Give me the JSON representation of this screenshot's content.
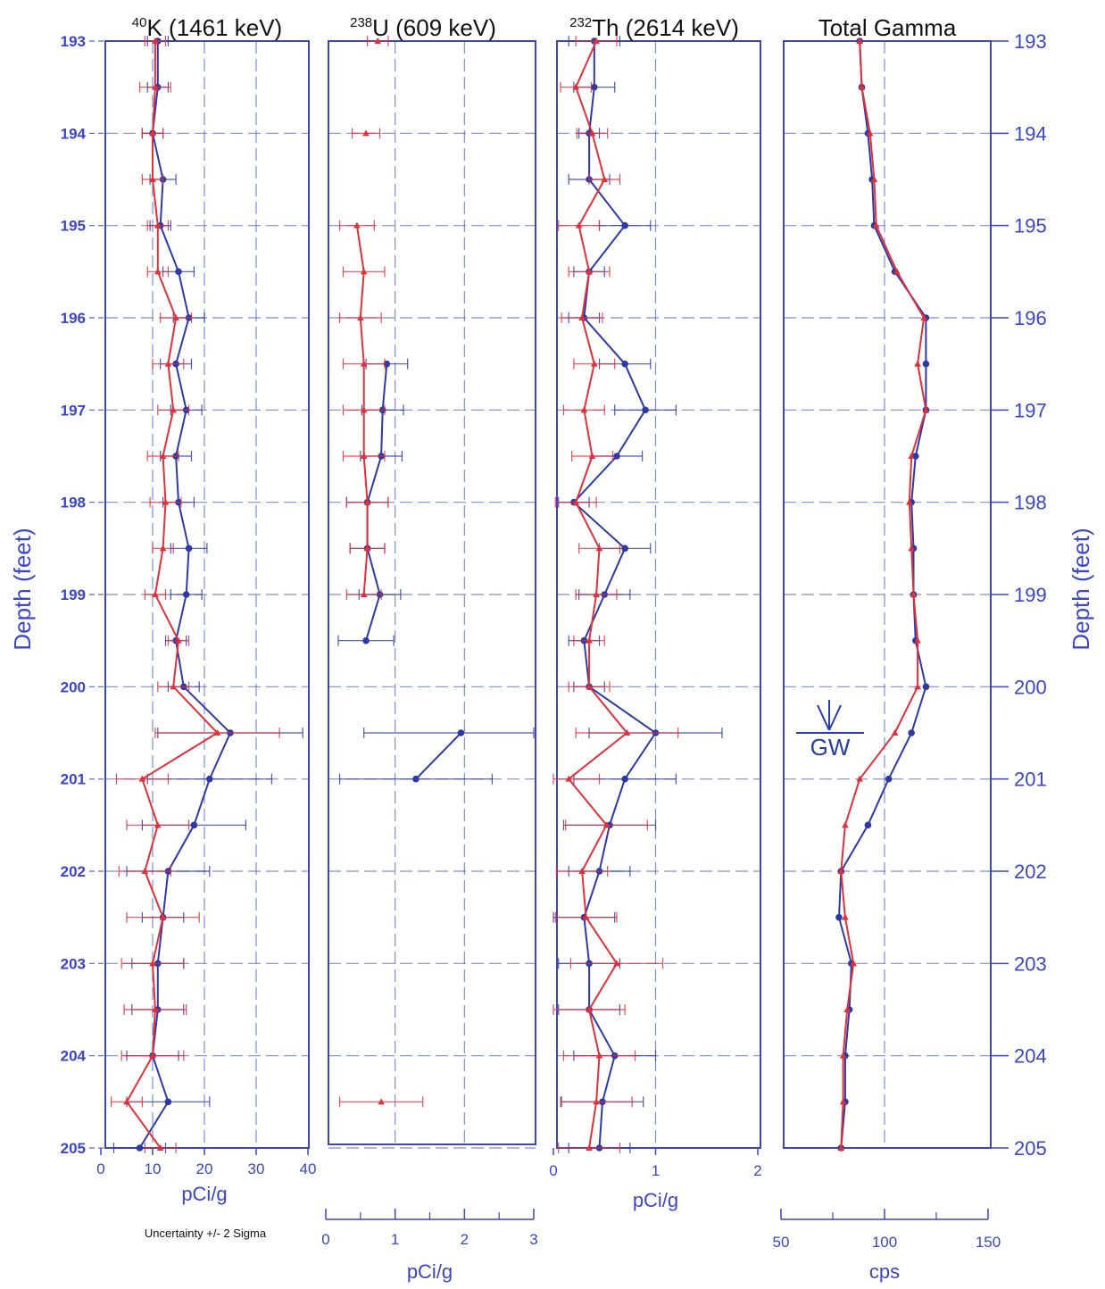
{
  "colors": {
    "frame": "#3a46c6",
    "grid": "#5a66c8",
    "series_a": "#e0303a",
    "series_b": "#2d3aa6",
    "title_text": "#111111"
  },
  "depth_axis": {
    "title": "Depth (feet)",
    "min": 193,
    "max": 205,
    "ticks": [
      "193",
      "194",
      "195",
      "196",
      "197",
      "198",
      "199",
      "200",
      "201",
      "202",
      "203",
      "204",
      "205"
    ]
  },
  "annotation": {
    "label": "GW",
    "depth": 200.55,
    "value": 100
  },
  "note": "Uncertainty +/- 2 Sigma",
  "chart_data": [
    {
      "type": "line",
      "title_sup": "40",
      "title": "K (1461 keV)",
      "xlabel": "pCi/g",
      "xlim": [
        0,
        40
      ],
      "x_ticks": [
        "0",
        "10",
        "20",
        "30",
        "40"
      ],
      "grid_x": [
        10,
        20,
        30
      ],
      "series": [
        {
          "color_key": "series_b",
          "depth": [
            193,
            193.5,
            194,
            194.5,
            195,
            195.5,
            196,
            196.5,
            197,
            197.5,
            198,
            198.5,
            199,
            199.5,
            200,
            200.5,
            201,
            201.5,
            202,
            202.5,
            203,
            203.5,
            204,
            204.5,
            205
          ],
          "values": [
            11,
            11,
            10,
            12,
            11.5,
            15,
            17,
            14.5,
            16.5,
            14.5,
            15,
            17,
            16.5,
            14.5,
            16,
            25,
            21,
            18,
            13,
            12,
            11,
            11,
            10,
            13,
            7.5
          ],
          "err": [
            2,
            2,
            2,
            2.5,
            2,
            3,
            3,
            3,
            3,
            3,
            3,
            3.5,
            3,
            2,
            3,
            14,
            12,
            10,
            8,
            4,
            5,
            5,
            5,
            8,
            5
          ]
        },
        {
          "color_key": "series_a",
          "depth": [
            193,
            193.5,
            194,
            194.5,
            195,
            195.5,
            196,
            196.5,
            197,
            197.5,
            198,
            198.5,
            199,
            199.5,
            200,
            200.5,
            201,
            201.5,
            202,
            202.5,
            203,
            203.5,
            204,
            204.5,
            205
          ],
          "values": [
            10.5,
            10.5,
            10,
            10,
            11,
            11,
            14.5,
            13,
            14,
            12,
            12.5,
            12,
            10.5,
            15,
            14,
            22.5,
            8,
            11,
            8.5,
            12,
            10,
            10.5,
            10,
            5,
            11.5
          ],
          "err": [
            2,
            3,
            2,
            2,
            2,
            2,
            3,
            3,
            3,
            3,
            3,
            2,
            2,
            2,
            3,
            12,
            5,
            6,
            5,
            7,
            6,
            6,
            6,
            3,
            3
          ]
        }
      ]
    },
    {
      "type": "line",
      "title_sup": "238",
      "title": "U (609 keV)",
      "xlabel": "pCi/g",
      "xlim": [
        0,
        3
      ],
      "x_ticks": [
        "0",
        "1",
        "2",
        "3"
      ],
      "grid_x": [
        1,
        2
      ],
      "series": [
        {
          "color_key": "series_b",
          "depth": [
            196.5,
            197,
            197.5,
            198,
            198.5,
            199,
            199.5
          ],
          "values": [
            0.88,
            0.82,
            0.8,
            0.6,
            0.6,
            0.78,
            0.58
          ],
          "err": [
            0.3,
            0.3,
            0.3,
            0.3,
            0.25,
            0.3,
            0.4
          ],
          "break_after": true
        },
        {
          "color_key": "series_b",
          "depth": [
            200.5,
            201
          ],
          "values": [
            1.95,
            1.3
          ],
          "err": [
            1.4,
            1.1
          ]
        },
        {
          "color_key": "series_a",
          "depth": [
            195,
            195.5,
            196,
            196.5,
            197,
            197.5,
            198,
            198.5,
            199
          ],
          "values": [
            0.45,
            0.55,
            0.5,
            0.55,
            0.55,
            0.55,
            0.6,
            0.6,
            0.55
          ],
          "err": [
            0.25,
            0.3,
            0.3,
            0.3,
            0.3,
            0.3,
            0.3,
            0.25,
            0.25
          ]
        },
        {
          "color_key": "series_a",
          "depth": [
            193
          ],
          "values": [
            0.75
          ],
          "err": [
            0.15
          ],
          "markers_only": true
        },
        {
          "color_key": "series_a",
          "depth": [
            194
          ],
          "values": [
            0.58
          ],
          "err": [
            0.2
          ],
          "markers_only": true
        },
        {
          "color_key": "series_a",
          "depth": [
            204.5
          ],
          "values": [
            0.8
          ],
          "err": [
            0.6
          ],
          "markers_only": true
        }
      ]
    },
    {
      "type": "line",
      "title_sup": "232",
      "title": "Th (2614 keV)",
      "xlabel": "pCi/g",
      "xlim": [
        0,
        2
      ],
      "x_ticks": [
        "0",
        "1",
        "2"
      ],
      "grid_x": [
        1
      ],
      "series": [
        {
          "color_key": "series_b",
          "depth": [
            193,
            193.5,
            194,
            194.5,
            195,
            195.5,
            196,
            196.5,
            197,
            197.5,
            198,
            198.5,
            199,
            199.5,
            200,
            200.5,
            201,
            201.5,
            202,
            202.5,
            203,
            203.5,
            204,
            204.5,
            205
          ],
          "values": [
            0.4,
            0.4,
            0.35,
            0.35,
            0.7,
            0.35,
            0.3,
            0.7,
            0.9,
            0.62,
            0.2,
            0.7,
            0.5,
            0.3,
            0.35,
            1.0,
            0.7,
            0.55,
            0.45,
            0.3,
            0.35,
            0.35,
            0.6,
            0.48,
            0.45
          ],
          "err": [
            0.25,
            0.2,
            0.1,
            0.2,
            0.25,
            0.15,
            0.15,
            0.25,
            0.3,
            0.25,
            0.15,
            0.25,
            0.25,
            0.15,
            0.15,
            0.65,
            0.5,
            0.45,
            0.3,
            0.3,
            0.3,
            0.3,
            0.4,
            0.4,
            0.3
          ]
        },
        {
          "color_key": "series_a",
          "depth": [
            193,
            193.5,
            194,
            194.5,
            195,
            195.5,
            196,
            196.5,
            197,
            197.5,
            198,
            198.5,
            199,
            199.5,
            200,
            200.5,
            201,
            201.5,
            202,
            202.5,
            203,
            203.5,
            204,
            204.5,
            205
          ],
          "values": [
            0.42,
            0.22,
            0.38,
            0.5,
            0.25,
            0.35,
            0.28,
            0.4,
            0.3,
            0.38,
            0.22,
            0.45,
            0.42,
            0.35,
            0.35,
            0.72,
            0.15,
            0.52,
            0.28,
            0.32,
            0.62,
            0.35,
            0.45,
            0.42,
            0.35
          ],
          "err": [
            0.2,
            0.15,
            0.15,
            0.15,
            0.2,
            0.2,
            0.2,
            0.2,
            0.2,
            0.2,
            0.2,
            0.2,
            0.2,
            0.15,
            0.2,
            0.5,
            0.3,
            0.4,
            0.25,
            0.3,
            0.45,
            0.35,
            0.35,
            0.35,
            0.3
          ]
        }
      ]
    },
    {
      "type": "line",
      "title_sup": "",
      "title": "Total Gamma",
      "xlabel": "cps",
      "xlim": [
        50,
        150
      ],
      "x_ticks": [
        "50",
        "100",
        "150"
      ],
      "grid_x": [
        100
      ],
      "series": [
        {
          "color_key": "series_b",
          "depth": [
            193,
            193.5,
            194,
            194.5,
            195,
            195.5,
            196,
            196.5,
            197,
            197.5,
            198,
            198.5,
            199,
            199.5,
            200,
            200.5,
            201,
            201.5,
            202,
            202.5,
            203,
            203.5,
            204,
            204.5,
            205
          ],
          "values": [
            88,
            89,
            92,
            94,
            95,
            105,
            120,
            120,
            120,
            115,
            113,
            114,
            114,
            115,
            120,
            113,
            102,
            92,
            79,
            78,
            84,
            83,
            81,
            81,
            79
          ],
          "err": []
        },
        {
          "color_key": "series_a",
          "depth": [
            193,
            193.5,
            194,
            194.5,
            195,
            195.5,
            196,
            196.5,
            197,
            197.5,
            198,
            198.5,
            199,
            199.5,
            200,
            200.5,
            201,
            201.5,
            202,
            202.5,
            203,
            203.5,
            204,
            204.5,
            205
          ],
          "values": [
            88,
            89,
            93,
            95,
            96,
            106,
            119,
            116,
            120,
            113,
            112,
            113,
            114,
            116,
            116,
            105,
            88,
            81,
            79,
            81,
            85,
            82,
            80,
            80,
            79
          ],
          "err": []
        }
      ]
    }
  ]
}
